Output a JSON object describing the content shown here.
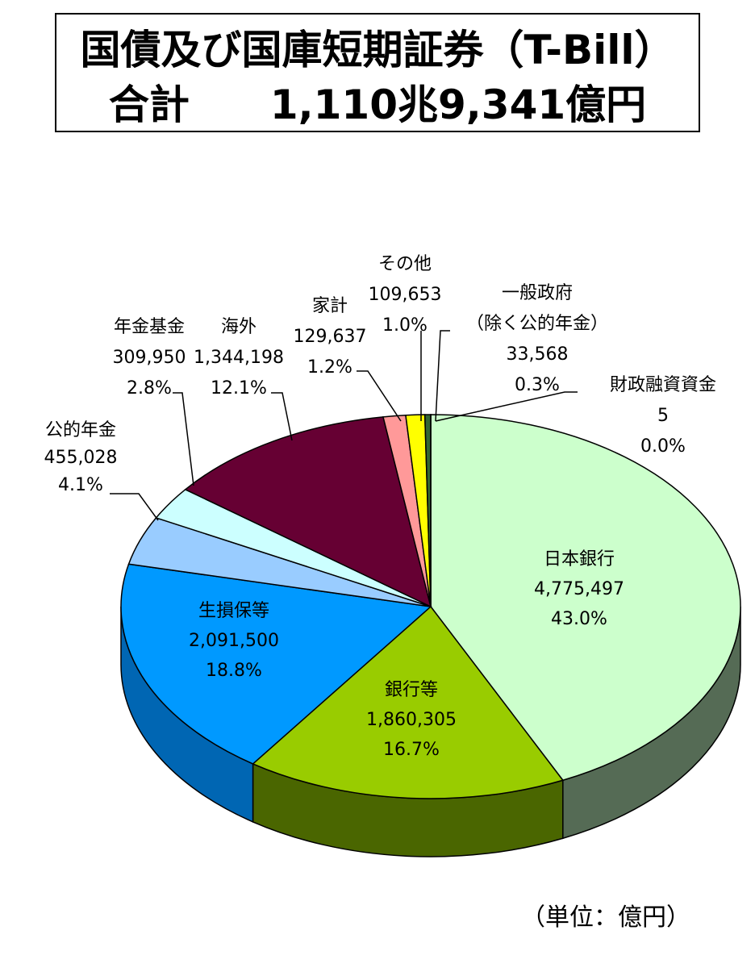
{
  "title": {
    "line1": "国債及び国庫短期証券（T-Bill）",
    "line2": "合計　　1,110兆9,341億円"
  },
  "unit_note": "（単位：億円）",
  "chart_data": {
    "type": "pie",
    "style": "3d",
    "title": "国債及び国庫短期証券（T-Bill） 合計 1,110兆9,341億円",
    "unit": "億円",
    "slices": [
      {
        "name": "日本銀行",
        "value": 4775497,
        "percent": "43.0%",
        "color": "#ccffcc",
        "side_color": "#556b55"
      },
      {
        "name": "銀行等",
        "value": 1860305,
        "percent": "16.7%",
        "color": "#99cc00",
        "side_color": "#4a6600"
      },
      {
        "name": "生損保等",
        "value": 2091500,
        "percent": "18.8%",
        "color": "#0099ff",
        "side_color": "#0066b3"
      },
      {
        "name": "公的年金",
        "value": 455028,
        "percent": "4.1%",
        "color": "#99ccff",
        "side_color": "#5f86b0"
      },
      {
        "name": "年金基金",
        "value": 309950,
        "percent": "2.8%",
        "color": "#ccffff",
        "side_color": "#8ab3b3"
      },
      {
        "name": "海外",
        "value": 1344198,
        "percent": "12.1%",
        "color": "#660033",
        "side_color": "#3d001f"
      },
      {
        "name": "家計",
        "value": 129637,
        "percent": "1.2%",
        "color": "#ff9999",
        "side_color": "#b36b6b"
      },
      {
        "name": "その他",
        "value": 109653,
        "percent": "1.0%",
        "color": "#ffff00",
        "side_color": "#b3b300"
      },
      {
        "name": "一般政府",
        "sublabel": "（除く公的年金）",
        "value": 33568,
        "percent": "0.3%",
        "color": "#336633",
        "side_color": "#1f3d1f"
      },
      {
        "name": "財政融資資金",
        "value": 5,
        "percent": "0.0%",
        "color": "#336633",
        "side_color": "#1f3d1f"
      }
    ]
  }
}
